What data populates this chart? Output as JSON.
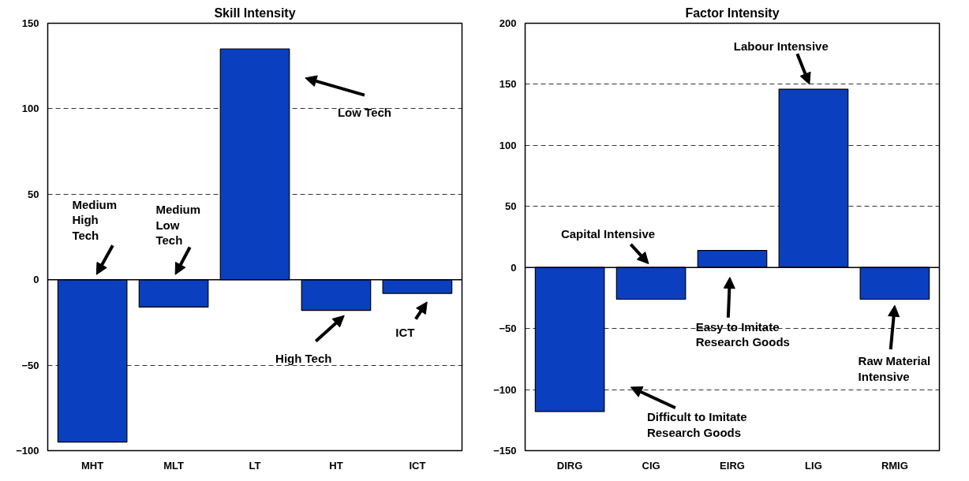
{
  "chart_data": [
    {
      "type": "bar",
      "title": "Skill Intensity",
      "categories": [
        "MHT",
        "MLT",
        "LT",
        "HT",
        "ICT"
      ],
      "values": [
        -95,
        -16,
        135,
        -18,
        -8
      ],
      "color": "#0a3fbf",
      "ylim": [
        -100,
        150
      ],
      "yticks": [
        -100,
        -50,
        0,
        50,
        100,
        150
      ],
      "grid": "y",
      "annotations": [
        "Medium\nHigh\nTech",
        "Medium\nLow\nTech",
        "Low Tech",
        "High Tech",
        "ICT"
      ]
    },
    {
      "type": "bar",
      "title": "Factor Intensity",
      "categories": [
        "DIRG",
        "CIG",
        "EIRG",
        "LIG",
        "RMIG"
      ],
      "values": [
        -118,
        -26,
        14,
        146,
        -26
      ],
      "color": "#0a3fbf",
      "ylim": [
        -150,
        200
      ],
      "yticks": [
        -150,
        -100,
        -50,
        0,
        50,
        100,
        150,
        200
      ],
      "grid": "y",
      "annotations": [
        "Difficult to Imitate\nResearch Goods",
        "Capital Intensive",
        "Easy to Imitate\nResearch Goods",
        "Labour Intensive",
        "Raw Material\nIntensive"
      ]
    }
  ]
}
